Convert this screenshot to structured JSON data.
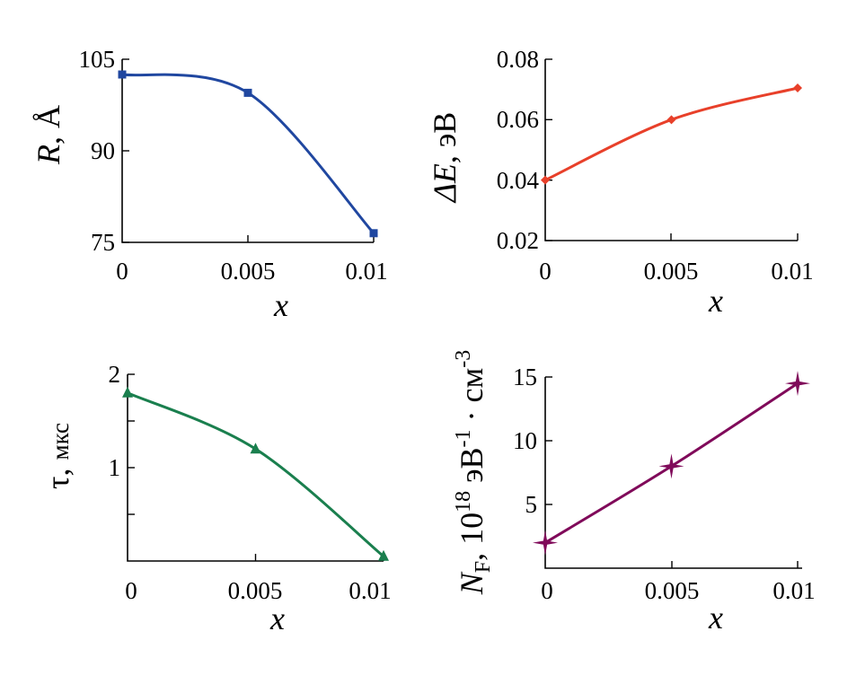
{
  "chart_data": [
    {
      "type": "line",
      "x": [
        0,
        0.005,
        0.01
      ],
      "values": [
        102.5,
        99.5,
        76.5
      ],
      "xlabel": {
        "var": "x"
      },
      "ylabel": {
        "var": "R",
        "sep": ", ",
        "unit": "Å"
      },
      "xticks": [
        "0",
        "0.005",
        "0.01"
      ],
      "yticks": [
        "75",
        "90",
        "105"
      ],
      "xlim": [
        0,
        0.01
      ],
      "ylim": [
        75,
        105
      ],
      "marker": "square",
      "color": "#2047a0"
    },
    {
      "type": "line",
      "x": [
        0,
        0.005,
        0.01
      ],
      "values": [
        0.04,
        0.06,
        0.0705
      ],
      "xlabel": {
        "var": "x"
      },
      "ylabel": {
        "var": "ΔE",
        "sep": ", ",
        "unit": "эВ"
      },
      "xticks": [
        "0",
        "0.005",
        "0.01"
      ],
      "yticks": [
        "0.02",
        "0.04",
        "0.06",
        "0.08"
      ],
      "xlim": [
        0,
        0.01
      ],
      "ylim": [
        0.02,
        0.08
      ],
      "marker": "diamond",
      "color": "#e8402a"
    },
    {
      "type": "line",
      "x": [
        0,
        0.005,
        0.01
      ],
      "values": [
        1.8,
        1.2,
        0.05
      ],
      "xlabel": {
        "var": "x"
      },
      "ylabel": {
        "var": "τ",
        "sep": ", ",
        "unit": "мкс"
      },
      "xticks": [
        "0",
        "0.005",
        "0.01"
      ],
      "yticks": [
        "1",
        "2"
      ],
      "xlim": [
        0,
        0.01
      ],
      "ylim": [
        0,
        2
      ],
      "marker": "triangle",
      "color": "#1a7f4e"
    },
    {
      "type": "line",
      "x": [
        0,
        0.005,
        0.01
      ],
      "values": [
        2,
        8,
        14.5
      ],
      "xlabel": {
        "var": "x"
      },
      "ylabel": {
        "var": "N",
        "sub": "F",
        "sep": ", ",
        "unit_base": "10",
        "unit_exp": "18",
        "unit_mid": " эВ",
        "unit_exp2": "-1",
        "unit_dot": " · см",
        "unit_exp3": "-3"
      },
      "xticks": [
        "0",
        "0.005",
        "0.01"
      ],
      "yticks": [
        "5",
        "10",
        "15"
      ],
      "xlim": [
        0,
        0.01
      ],
      "ylim": [
        0,
        15
      ],
      "marker": "star",
      "color": "#800a5a"
    }
  ]
}
